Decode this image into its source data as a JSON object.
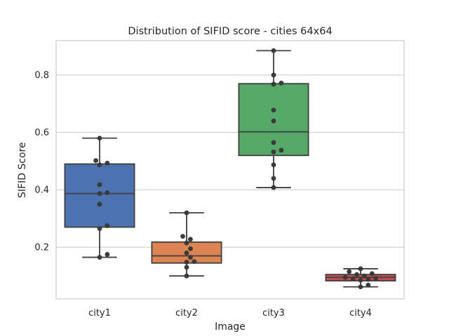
{
  "chart_data": {
    "type": "box",
    "title": "Distribution of SIFID score - cities 64x64",
    "xlabel": "Image",
    "ylabel": "SIFID Score",
    "ylim": [
      0.02,
      0.92
    ],
    "yticks": [
      0.2,
      0.4,
      0.6,
      0.8
    ],
    "ytick_labels": [
      "0.2",
      "0.4",
      "0.6",
      "0.8"
    ],
    "grid": "horizontal",
    "categories": [
      "city1",
      "city2",
      "city3",
      "city4"
    ],
    "box_colors": [
      "#4c72b0",
      "#dd8452",
      "#55a868",
      "#c44e52"
    ],
    "boxes": [
      {
        "category": "city1",
        "whisker_low": 0.165,
        "q1": 0.27,
        "median": 0.387,
        "q3": 0.49,
        "whisker_high": 0.58,
        "points": [
          0.58,
          0.502,
          0.493,
          0.487,
          0.418,
          0.39,
          0.387,
          0.35,
          0.275,
          0.265,
          0.175,
          0.165
        ]
      },
      {
        "category": "city2",
        "whisker_low": 0.1,
        "q1": 0.145,
        "median": 0.17,
        "q3": 0.218,
        "whisker_high": 0.32,
        "points": [
          0.32,
          0.238,
          0.228,
          0.215,
          0.195,
          0.18,
          0.165,
          0.15,
          0.148,
          0.13,
          0.1
        ]
      },
      {
        "category": "city3",
        "whisker_low": 0.408,
        "q1": 0.52,
        "median": 0.602,
        "q3": 0.77,
        "whisker_high": 0.885,
        "points": [
          0.885,
          0.8,
          0.772,
          0.768,
          0.678,
          0.64,
          0.565,
          0.538,
          0.532,
          0.487,
          0.44,
          0.408
        ]
      },
      {
        "category": "city4",
        "whisker_low": 0.062,
        "q1": 0.083,
        "median": 0.095,
        "q3": 0.105,
        "whisker_high": 0.125,
        "points": [
          0.125,
          0.115,
          0.108,
          0.105,
          0.1,
          0.095,
          0.092,
          0.09,
          0.088,
          0.085,
          0.068,
          0.062
        ]
      }
    ]
  }
}
